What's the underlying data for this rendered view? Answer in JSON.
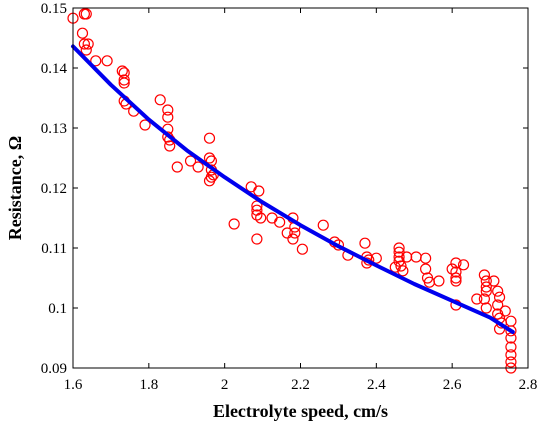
{
  "chart_data": {
    "type": "scatter",
    "xlabel": "Electrolyte speed, cm/s",
    "ylabel": "Resistance, Ω",
    "xlim": [
      1.6,
      2.8
    ],
    "ylim": [
      0.09,
      0.15
    ],
    "x_ticks": [
      "1.6",
      "1.8",
      "2",
      "2.2",
      "2.4",
      "2.6",
      "2.8"
    ],
    "y_ticks": [
      "0.09",
      "0.1",
      "0.11",
      "0.12",
      "0.13",
      "0.14",
      "0.15"
    ],
    "grid": false,
    "legend": "none",
    "series": [
      {
        "kind": "scatter",
        "marker": "open-circle",
        "color": "#ff0000",
        "points": [
          [
            1.6,
            0.1483
          ],
          [
            1.63,
            0.149
          ],
          [
            1.635,
            0.149
          ],
          [
            1.625,
            0.1458
          ],
          [
            1.63,
            0.144
          ],
          [
            1.64,
            0.144
          ],
          [
            1.635,
            0.143
          ],
          [
            1.66,
            0.1412
          ],
          [
            1.69,
            0.1412
          ],
          [
            1.73,
            0.1395
          ],
          [
            1.735,
            0.1392
          ],
          [
            1.735,
            0.138
          ],
          [
            1.735,
            0.1375
          ],
          [
            1.735,
            0.1345
          ],
          [
            1.74,
            0.134
          ],
          [
            1.76,
            0.1328
          ],
          [
            1.79,
            0.1305
          ],
          [
            1.83,
            0.1347
          ],
          [
            1.85,
            0.133
          ],
          [
            1.85,
            0.1318
          ],
          [
            1.85,
            0.1298
          ],
          [
            1.85,
            0.1285
          ],
          [
            1.855,
            0.128
          ],
          [
            1.855,
            0.127
          ],
          [
            1.875,
            0.1235
          ],
          [
            1.91,
            0.1245
          ],
          [
            1.93,
            0.1235
          ],
          [
            1.96,
            0.1283
          ],
          [
            1.96,
            0.125
          ],
          [
            1.965,
            0.1245
          ],
          [
            1.965,
            0.123
          ],
          [
            1.965,
            0.1218
          ],
          [
            1.96,
            0.1212
          ],
          [
            1.97,
            0.1222
          ],
          [
            2.025,
            0.114
          ],
          [
            2.07,
            0.1202
          ],
          [
            2.09,
            0.1195
          ],
          [
            2.085,
            0.117
          ],
          [
            2.085,
            0.1163
          ],
          [
            2.085,
            0.1155
          ],
          [
            2.095,
            0.115
          ],
          [
            2.085,
            0.1115
          ],
          [
            2.125,
            0.115
          ],
          [
            2.145,
            0.1143
          ],
          [
            2.165,
            0.1125
          ],
          [
            2.18,
            0.115
          ],
          [
            2.185,
            0.1135
          ],
          [
            2.185,
            0.1125
          ],
          [
            2.18,
            0.1115
          ],
          [
            2.205,
            0.1098
          ],
          [
            2.26,
            0.1138
          ],
          [
            2.29,
            0.111
          ],
          [
            2.3,
            0.1105
          ],
          [
            2.325,
            0.1088
          ],
          [
            2.37,
            0.1108
          ],
          [
            2.375,
            0.1085
          ],
          [
            2.38,
            0.108
          ],
          [
            2.375,
            0.1075
          ],
          [
            2.4,
            0.1083
          ],
          [
            2.45,
            0.1068
          ],
          [
            2.46,
            0.11
          ],
          [
            2.46,
            0.1093
          ],
          [
            2.46,
            0.1085
          ],
          [
            2.46,
            0.1078
          ],
          [
            2.465,
            0.107
          ],
          [
            2.47,
            0.1062
          ],
          [
            2.48,
            0.1085
          ],
          [
            2.505,
            0.1085
          ],
          [
            2.53,
            0.1083
          ],
          [
            2.53,
            0.1065
          ],
          [
            2.535,
            0.105
          ],
          [
            2.54,
            0.1043
          ],
          [
            2.565,
            0.1045
          ],
          [
            2.6,
            0.1065
          ],
          [
            2.61,
            0.1075
          ],
          [
            2.61,
            0.106
          ],
          [
            2.61,
            0.105
          ],
          [
            2.61,
            0.1045
          ],
          [
            2.61,
            0.1005
          ],
          [
            2.63,
            0.1072
          ],
          [
            2.665,
            0.1015
          ],
          [
            2.685,
            0.1055
          ],
          [
            2.69,
            0.1045
          ],
          [
            2.69,
            0.1035
          ],
          [
            2.69,
            0.1028
          ],
          [
            2.685,
            0.1015
          ],
          [
            2.69,
            0.1
          ],
          [
            2.71,
            0.1045
          ],
          [
            2.72,
            0.1028
          ],
          [
            2.725,
            0.1018
          ],
          [
            2.72,
            0.1005
          ],
          [
            2.72,
            0.099
          ],
          [
            2.725,
            0.0983
          ],
          [
            2.725,
            0.0965
          ],
          [
            2.73,
            0.0975
          ],
          [
            2.74,
            0.0995
          ],
          [
            2.755,
            0.0978
          ],
          [
            2.755,
            0.0962
          ],
          [
            2.755,
            0.095
          ],
          [
            2.755,
            0.0935
          ],
          [
            2.755,
            0.0922
          ],
          [
            2.755,
            0.091
          ],
          [
            2.755,
            0.09
          ]
        ]
      },
      {
        "kind": "line",
        "color": "#0000ee",
        "points": [
          [
            1.6,
            0.1436
          ],
          [
            1.7,
            0.1372
          ],
          [
            1.8,
            0.1314
          ],
          [
            1.9,
            0.1263
          ],
          [
            2.0,
            0.1218
          ],
          [
            2.1,
            0.1176
          ],
          [
            2.2,
            0.1138
          ],
          [
            2.3,
            0.1103
          ],
          [
            2.4,
            0.1071
          ],
          [
            2.5,
            0.104
          ],
          [
            2.6,
            0.1012
          ],
          [
            2.7,
            0.0984
          ],
          [
            2.76,
            0.096
          ]
        ]
      }
    ]
  }
}
